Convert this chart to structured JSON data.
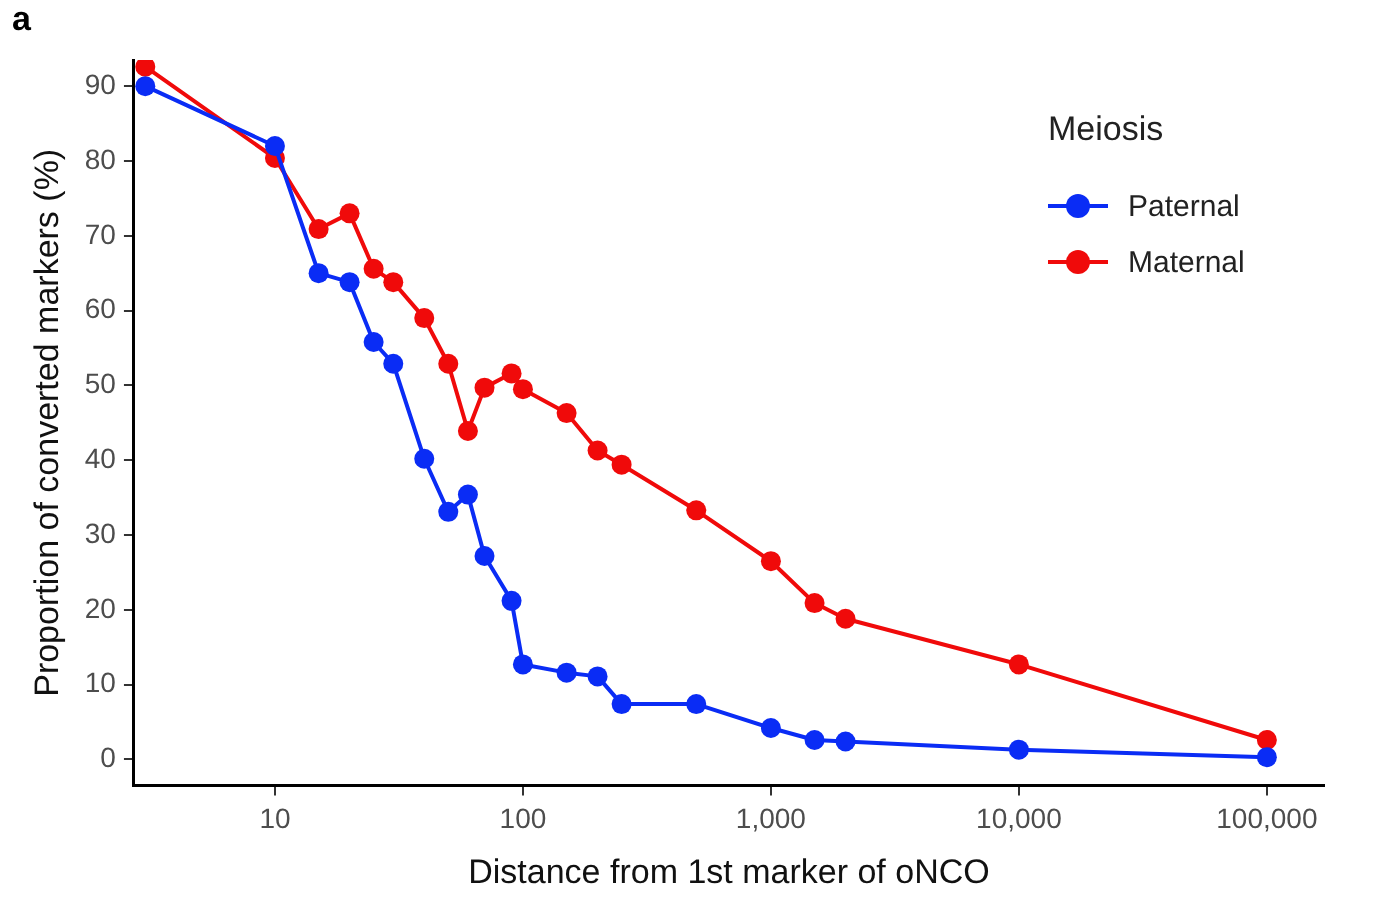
{
  "chart_data": {
    "type": "line",
    "xlabel": "Distance from 1st marker of oNCO",
    "ylabel": "Proportion of converted markers (%)",
    "legend_title": "Meiosis",
    "annotations": [
      "a"
    ],
    "x": [
      3,
      10,
      15,
      20,
      25,
      30,
      40,
      50,
      60,
      70,
      90,
      100,
      150,
      200,
      250,
      500,
      1000,
      1500,
      2000,
      10000,
      100000
    ],
    "series": [
      {
        "name": "Paternal",
        "color": "#0a2cf5",
        "values": [
          90,
          82,
          65,
          63.8,
          55.8,
          52.9,
          40.2,
          33.1,
          35.4,
          27.2,
          21.2,
          12.7,
          11.6,
          11.1,
          7.4,
          7.4,
          4.2,
          2.6,
          2.4,
          1.3,
          0.3
        ]
      },
      {
        "name": "Maternal",
        "color": "#f00a0a",
        "values": [
          92.6,
          80.4,
          70.9,
          73,
          65.6,
          63.8,
          59,
          52.9,
          43.9,
          49.7,
          51.6,
          49.5,
          46.3,
          41.3,
          39.4,
          33.3,
          26.5,
          20.9,
          18.8,
          12.7,
          2.6
        ]
      }
    ],
    "log": "x",
    "xlim": [
      2.7,
      170000
    ],
    "xticks": [
      10,
      100,
      {
        "value": 1000,
        "label": "1,000"
      },
      {
        "value": 10000,
        "label": "10,000"
      },
      {
        "value": 100000,
        "label": "100,000"
      }
    ],
    "ylim": [
      -3.5,
      93.5
    ],
    "yticks": [
      0,
      10,
      20,
      30,
      40,
      50,
      60,
      70,
      80,
      90
    ],
    "grid": false,
    "legend": "top right",
    "marker": "circle",
    "line_style": "solid"
  }
}
